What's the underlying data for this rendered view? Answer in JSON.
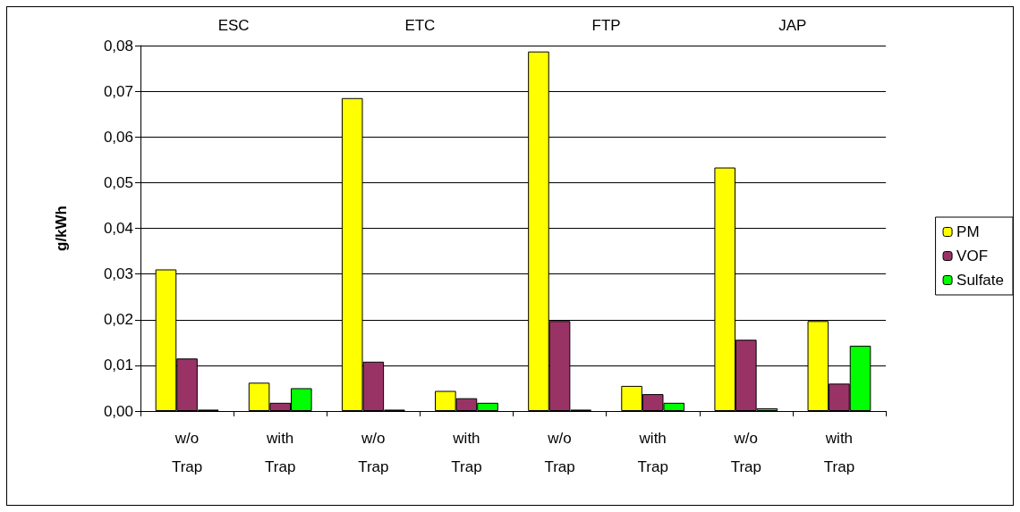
{
  "chart_data": {
    "type": "bar",
    "ylabel": "g/kWh",
    "categories": [
      "w/o\nTrap",
      "with\nTrap",
      "w/o\nTrap",
      "with\nTrap",
      "w/o\nTrap",
      "with\nTrap",
      "w/o\nTrap",
      "with\nTrap"
    ],
    "series": [
      {
        "name": "PM",
        "color": "#ffff00",
        "values": [
          0.031,
          0.0062,
          0.0685,
          0.0044,
          0.0787,
          0.0055,
          0.0533,
          0.0197
        ]
      },
      {
        "name": "VOF",
        "color": "#993366",
        "values": [
          0.0115,
          0.0018,
          0.0108,
          0.0028,
          0.0197,
          0.0037,
          0.0156,
          0.006
        ]
      },
      {
        "name": "Sulfate",
        "color": "#00ff00",
        "values": [
          0.0003,
          0.005,
          0.0003,
          0.0018,
          0.0003,
          0.0018,
          0.0006,
          0.0143
        ]
      }
    ],
    "ylim": [
      0,
      0.08
    ],
    "yticks": [
      {
        "value": 0,
        "label": "0,00"
      },
      {
        "value": 0.01,
        "label": "0,01"
      },
      {
        "value": 0.02,
        "label": "0,02"
      },
      {
        "value": 0.03,
        "label": "0,03"
      },
      {
        "value": 0.04,
        "label": "0,04"
      },
      {
        "value": 0.05,
        "label": "0,05"
      },
      {
        "value": 0.06,
        "label": "0,06"
      },
      {
        "value": 0.07,
        "label": "0,07"
      },
      {
        "value": 0.08,
        "label": "0,08"
      }
    ],
    "annotations": [
      "ESC",
      "ETC",
      "FTP",
      "JAP"
    ],
    "grid": "y",
    "legend": "right"
  }
}
